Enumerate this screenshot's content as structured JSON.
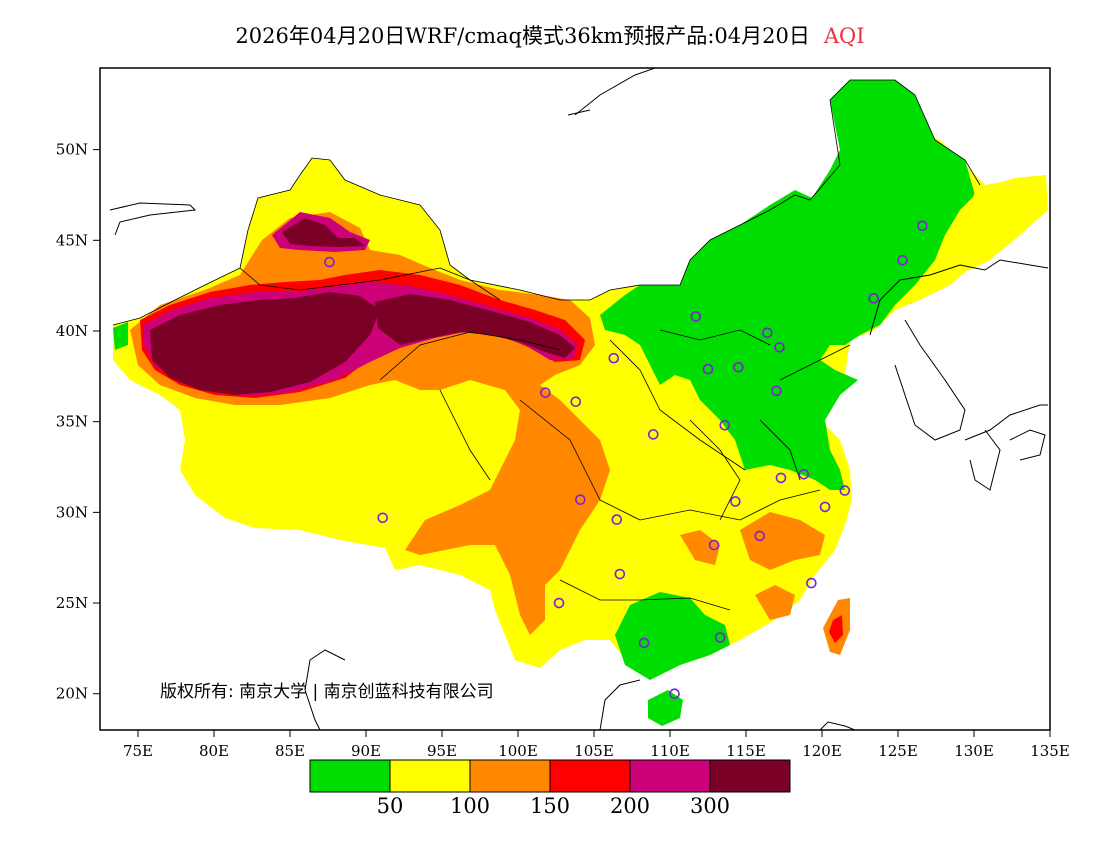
{
  "title": {
    "product": "2026年04月20日WRF/cmaq模式36km预报产品:04月20日",
    "variable": "AQI"
  },
  "copyright": "版权所有: 南京大学 | 南京创蓝科技有限公司",
  "axes": {
    "x_ticks": [
      "75E",
      "80E",
      "85E",
      "90E",
      "95E",
      "100E",
      "105E",
      "110E",
      "115E",
      "120E",
      "125E",
      "130E",
      "135E"
    ],
    "y_ticks": [
      "50N",
      "45N",
      "40N",
      "35N",
      "30N",
      "25N",
      "20N"
    ]
  },
  "legend": {
    "bins": [
      {
        "color": "#00dd00"
      },
      {
        "color": "#ffff00"
      },
      {
        "color": "#ff8800"
      },
      {
        "color": "#ff0000"
      },
      {
        "color": "#cc0077"
      },
      {
        "color": "#7a0026"
      }
    ],
    "labels": [
      "50",
      "100",
      "150",
      "200",
      "300"
    ]
  },
  "stations": [
    {
      "lon": 87.6,
      "lat": 43.8
    },
    {
      "lon": 101.8,
      "lat": 36.6
    },
    {
      "lon": 103.8,
      "lat": 36.1
    },
    {
      "lon": 106.3,
      "lat": 38.5
    },
    {
      "lon": 111.7,
      "lat": 40.8
    },
    {
      "lon": 112.5,
      "lat": 37.9
    },
    {
      "lon": 114.5,
      "lat": 38.0
    },
    {
      "lon": 116.4,
      "lat": 39.9
    },
    {
      "lon": 117.2,
      "lat": 39.1
    },
    {
      "lon": 117.0,
      "lat": 36.7
    },
    {
      "lon": 113.6,
      "lat": 34.8
    },
    {
      "lon": 108.9,
      "lat": 34.3
    },
    {
      "lon": 104.1,
      "lat": 30.7
    },
    {
      "lon": 106.5,
      "lat": 29.6
    },
    {
      "lon": 114.3,
      "lat": 30.6
    },
    {
      "lon": 112.9,
      "lat": 28.2
    },
    {
      "lon": 115.9,
      "lat": 28.7
    },
    {
      "lon": 117.3,
      "lat": 31.9
    },
    {
      "lon": 118.8,
      "lat": 32.1
    },
    {
      "lon": 120.2,
      "lat": 30.3
    },
    {
      "lon": 121.5,
      "lat": 31.2
    },
    {
      "lon": 119.3,
      "lat": 26.1
    },
    {
      "lon": 113.3,
      "lat": 23.1
    },
    {
      "lon": 108.3,
      "lat": 22.8
    },
    {
      "lon": 110.3,
      "lat": 20.0
    },
    {
      "lon": 106.7,
      "lat": 26.6
    },
    {
      "lon": 102.7,
      "lat": 25.0
    },
    {
      "lon": 91.1,
      "lat": 29.7
    },
    {
      "lon": 123.4,
      "lat": 41.8
    },
    {
      "lon": 125.3,
      "lat": 43.9
    },
    {
      "lon": 126.6,
      "lat": 45.8
    }
  ]
}
